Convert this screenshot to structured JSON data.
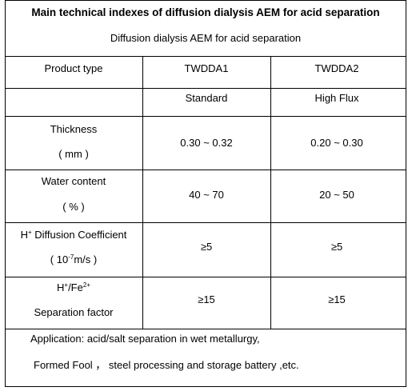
{
  "title": "Main technical indexes of  diffusion dialysis AEM for acid separation",
  "subtitle": "Diffusion dialysis AEM for acid separation",
  "header": {
    "product_type": "Product type",
    "models": [
      "TWDDA1",
      "TWDDA2"
    ],
    "grades": [
      "Standard",
      "High Flux"
    ]
  },
  "rows": [
    {
      "label_line1": "Thickness",
      "label_line2": "( mm )",
      "values": [
        "0.30 ~ 0.32",
        "0.20 ~ 0.30"
      ]
    },
    {
      "label_line1": "Water content",
      "label_line2": "( % )",
      "values": [
        "40 ~ 70",
        "20 ~ 50"
      ]
    },
    {
      "label_line1_base": "H",
      "label_line1_sup": "+",
      "label_line1_rest": " Diffusion Coefficient",
      "label_line2_pre": "( 10",
      "label_line2_sup": "-7",
      "label_line2_post": "m/s )",
      "values": [
        "≥5",
        "≥5"
      ]
    },
    {
      "label_line1_a": "H",
      "label_line1_sup1": "+",
      "label_line1_b": "/Fe",
      "label_line1_sup2": "2+",
      "label_line2": "Separation factor",
      "values": [
        "≥15",
        "≥15"
      ]
    }
  ],
  "application": {
    "line1": "Application: acid/salt separation in wet metallurgy,",
    "line2": "Formed Fool ， steel processing and storage battery ,etc."
  }
}
